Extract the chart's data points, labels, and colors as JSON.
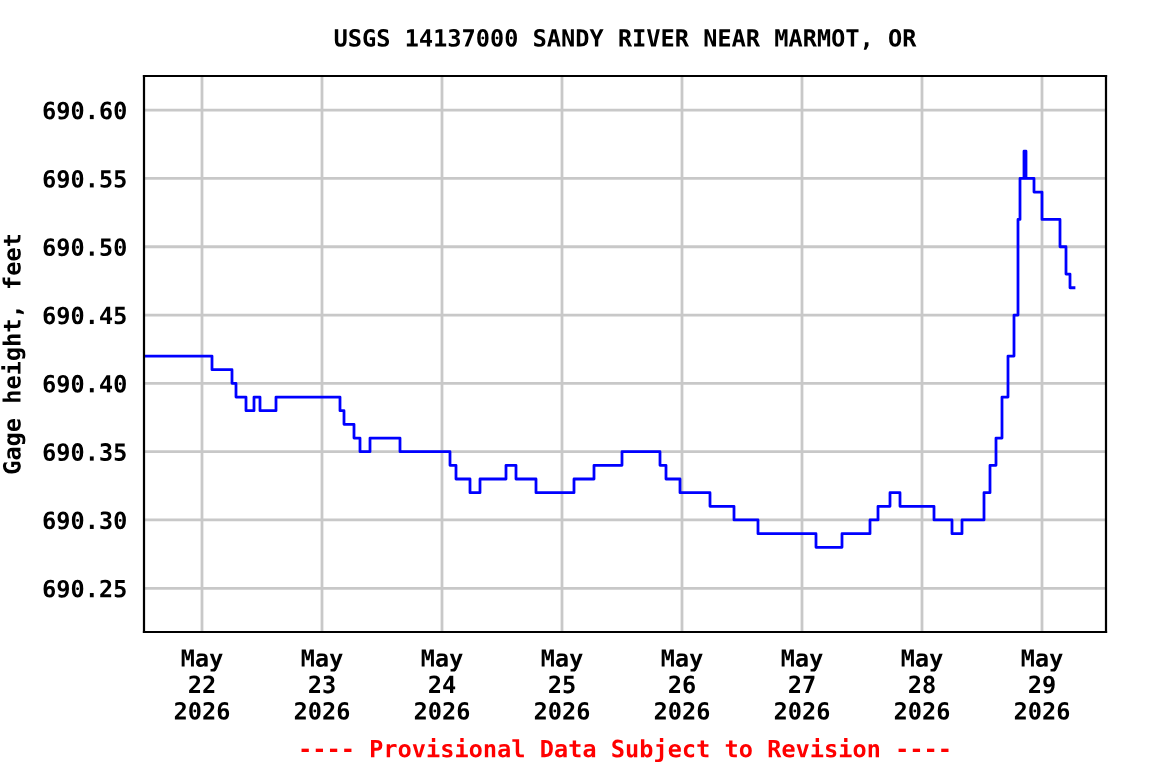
{
  "chart_data": {
    "type": "step",
    "title": "USGS 14137000 SANDY RIVER NEAR MARMOT, OR",
    "ylabel": "Gage height, feet",
    "x": [
      "2026-05-21T12:24",
      "2026-05-22T02:00",
      "2026-05-22T06:00",
      "2026-05-22T06:48",
      "2026-05-22T08:48",
      "2026-05-22T10:24",
      "2026-05-22T11:36",
      "2026-05-22T14:48",
      "2026-05-23T03:36",
      "2026-05-23T04:24",
      "2026-05-23T06:24",
      "2026-05-23T07:36",
      "2026-05-23T09:36",
      "2026-05-23T15:36",
      "2026-05-24T01:36",
      "2026-05-24T02:48",
      "2026-05-24T05:36",
      "2026-05-24T07:36",
      "2026-05-24T12:48",
      "2026-05-24T14:48",
      "2026-05-24T18:48",
      "2026-05-25T02:24",
      "2026-05-25T06:24",
      "2026-05-25T12:00",
      "2026-05-25T19:36",
      "2026-05-25T20:48",
      "2026-05-25T23:36",
      "2026-05-26T05:36",
      "2026-05-26T10:24",
      "2026-05-26T15:12",
      "2026-05-27T02:48",
      "2026-05-27T08:00",
      "2026-05-27T13:36",
      "2026-05-27T15:12",
      "2026-05-27T17:36",
      "2026-05-27T19:36",
      "2026-05-28T02:24",
      "2026-05-28T06:00",
      "2026-05-28T08:00",
      "2026-05-28T12:24",
      "2026-05-28T13:36",
      "2026-05-28T14:48",
      "2026-05-28T16:00",
      "2026-05-28T17:12",
      "2026-05-28T18:24",
      "2026-05-28T19:12",
      "2026-05-28T19:36",
      "2026-05-28T20:24",
      "2026-05-28T20:48",
      "2026-05-28T22:24",
      "2026-05-28T23:12",
      "2026-05-29T00:00",
      "2026-05-29T03:36",
      "2026-05-29T04:48",
      "2026-05-29T05:36",
      "2026-05-29T06:24"
    ],
    "series": [
      {
        "color": "#0000ff",
        "values": [
          690.42,
          690.41,
          690.4,
          690.39,
          690.38,
          690.39,
          690.38,
          690.39,
          690.38,
          690.37,
          690.36,
          690.35,
          690.36,
          690.35,
          690.34,
          690.33,
          690.32,
          690.33,
          690.34,
          690.33,
          690.32,
          690.33,
          690.34,
          690.35,
          690.34,
          690.33,
          690.32,
          690.31,
          690.3,
          690.29,
          690.28,
          690.29,
          690.3,
          690.31,
          690.32,
          690.31,
          690.3,
          690.29,
          690.3,
          690.32,
          690.34,
          690.36,
          690.39,
          690.42,
          690.45,
          690.52,
          690.55,
          690.57,
          690.55,
          690.54,
          690.54,
          690.52,
          690.5,
          690.48,
          690.47,
          690.47
        ]
      }
    ],
    "xlim": [
      "2026-05-21T12:24",
      "2026-05-29T12:48"
    ],
    "xticks": [
      {
        "value": "2026-05-22",
        "label": "May\n22\n2026"
      },
      {
        "value": "2026-05-23",
        "label": "May\n23\n2026"
      },
      {
        "value": "2026-05-24",
        "label": "May\n24\n2026"
      },
      {
        "value": "2026-05-25",
        "label": "May\n25\n2026"
      },
      {
        "value": "2026-05-26",
        "label": "May\n26\n2026"
      },
      {
        "value": "2026-05-27",
        "label": "May\n27\n2026"
      },
      {
        "value": "2026-05-28",
        "label": "May\n28\n2026"
      },
      {
        "value": "2026-05-29",
        "label": "May\n29\n2026"
      }
    ],
    "ylim": [
      690.218,
      690.625
    ],
    "yticks": [
      {
        "value": 690.25,
        "label": "690.25"
      },
      {
        "value": 690.3,
        "label": "690.30"
      },
      {
        "value": 690.35,
        "label": "690.35"
      },
      {
        "value": 690.4,
        "label": "690.40"
      },
      {
        "value": 690.45,
        "label": "690.45"
      },
      {
        "value": 690.5,
        "label": "690.50"
      },
      {
        "value": 690.55,
        "label": "690.55"
      },
      {
        "value": 690.6,
        "label": "690.60"
      }
    ],
    "grid": true,
    "annotations": [
      "---- Provisional Data Subject to Revision ----"
    ]
  }
}
